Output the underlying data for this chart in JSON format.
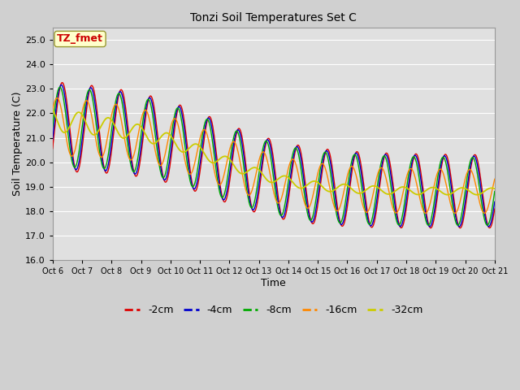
{
  "title": "Tonzi Soil Temperatures Set C",
  "xlabel": "Time",
  "ylabel": "Soil Temperature (C)",
  "ylim": [
    16.0,
    25.5
  ],
  "yticks": [
    16.0,
    17.0,
    18.0,
    19.0,
    20.0,
    21.0,
    22.0,
    23.0,
    24.0,
    25.0
  ],
  "xtick_labels": [
    "Oct 6",
    "Oct 7",
    "Oct 8",
    "Oct 9",
    "Oct 10",
    "Oct 11",
    "Oct 12",
    "Oct 13",
    "Oct 14",
    "Oct 15",
    "Oct 16",
    "Oct 17",
    "Oct 18",
    "Oct 19",
    "Oct 20",
    "Oct 21"
  ],
  "annotation_text": "TZ_fmet",
  "annotation_color": "#cc0000",
  "annotation_bg": "#ffffcc",
  "annotation_border": "#999933",
  "colors": {
    "-2cm": "#dd0000",
    "-4cm": "#0000cc",
    "-8cm": "#00aa00",
    "-16cm": "#ff8800",
    "-32cm": "#cccc00"
  },
  "legend_labels": [
    "-2cm",
    "-4cm",
    "-8cm",
    "-16cm",
    "-32cm"
  ],
  "fig_bg": "#d0d0d0",
  "plot_bg": "#e0e0e0",
  "grid_color": "#ffffff",
  "num_points": 721
}
